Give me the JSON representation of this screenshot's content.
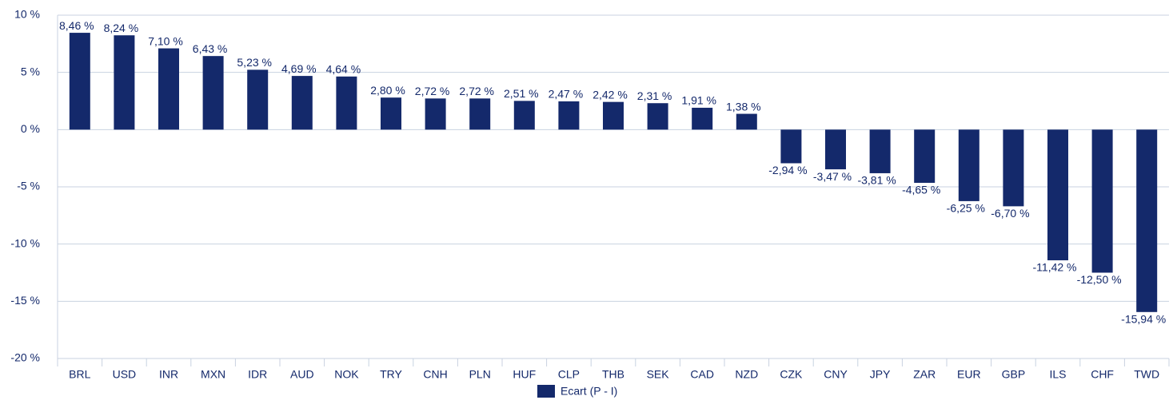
{
  "chart_data": {
    "type": "bar",
    "categories": [
      "BRL",
      "USD",
      "INR",
      "MXN",
      "IDR",
      "AUD",
      "NOK",
      "TRY",
      "CNH",
      "PLN",
      "HUF",
      "CLP",
      "THB",
      "SEK",
      "CAD",
      "NZD",
      "CZK",
      "CNY",
      "JPY",
      "ZAR",
      "EUR",
      "GBP",
      "ILS",
      "CHF",
      "TWD"
    ],
    "series": [
      {
        "name": "Ecart (P - I)",
        "color": "#14296b",
        "values": [
          8.46,
          8.24,
          7.1,
          6.43,
          5.23,
          4.69,
          4.64,
          2.8,
          2.72,
          2.72,
          2.51,
          2.47,
          2.42,
          2.31,
          1.91,
          1.38,
          -2.94,
          -3.47,
          -3.81,
          -4.65,
          -6.25,
          -6.7,
          -11.42,
          -12.5,
          -15.94
        ],
        "value_labels": [
          "8,46 %",
          "8,24 %",
          "7,10 %",
          "6,43 %",
          "5,23 %",
          "4,69 %",
          "4,64 %",
          "2,80 %",
          "2,72 %",
          "2,72 %",
          "2,51 %",
          "2,47 %",
          "2,42 %",
          "2,31 %",
          "1,91 %",
          "1,38 %",
          "-2,94 %",
          "-3,47 %",
          "-3,81 %",
          "-4,65 %",
          "-6,25 %",
          "-6,70 %",
          "-11,42 %",
          "-12,50 %",
          "-15,94 %"
        ]
      }
    ],
    "ylim": [
      -20,
      10
    ],
    "yticks": [
      {
        "value": -20,
        "label": "-20 %"
      },
      {
        "value": -15,
        "label": "-15 %"
      },
      {
        "value": -10,
        "label": "-10 %"
      },
      {
        "value": -5,
        "label": "-5 %"
      },
      {
        "value": 0,
        "label": "0 %"
      },
      {
        "value": 5,
        "label": "5 %"
      },
      {
        "value": 10,
        "label": "10 %"
      }
    ],
    "grid": true,
    "legend": "bottom"
  }
}
